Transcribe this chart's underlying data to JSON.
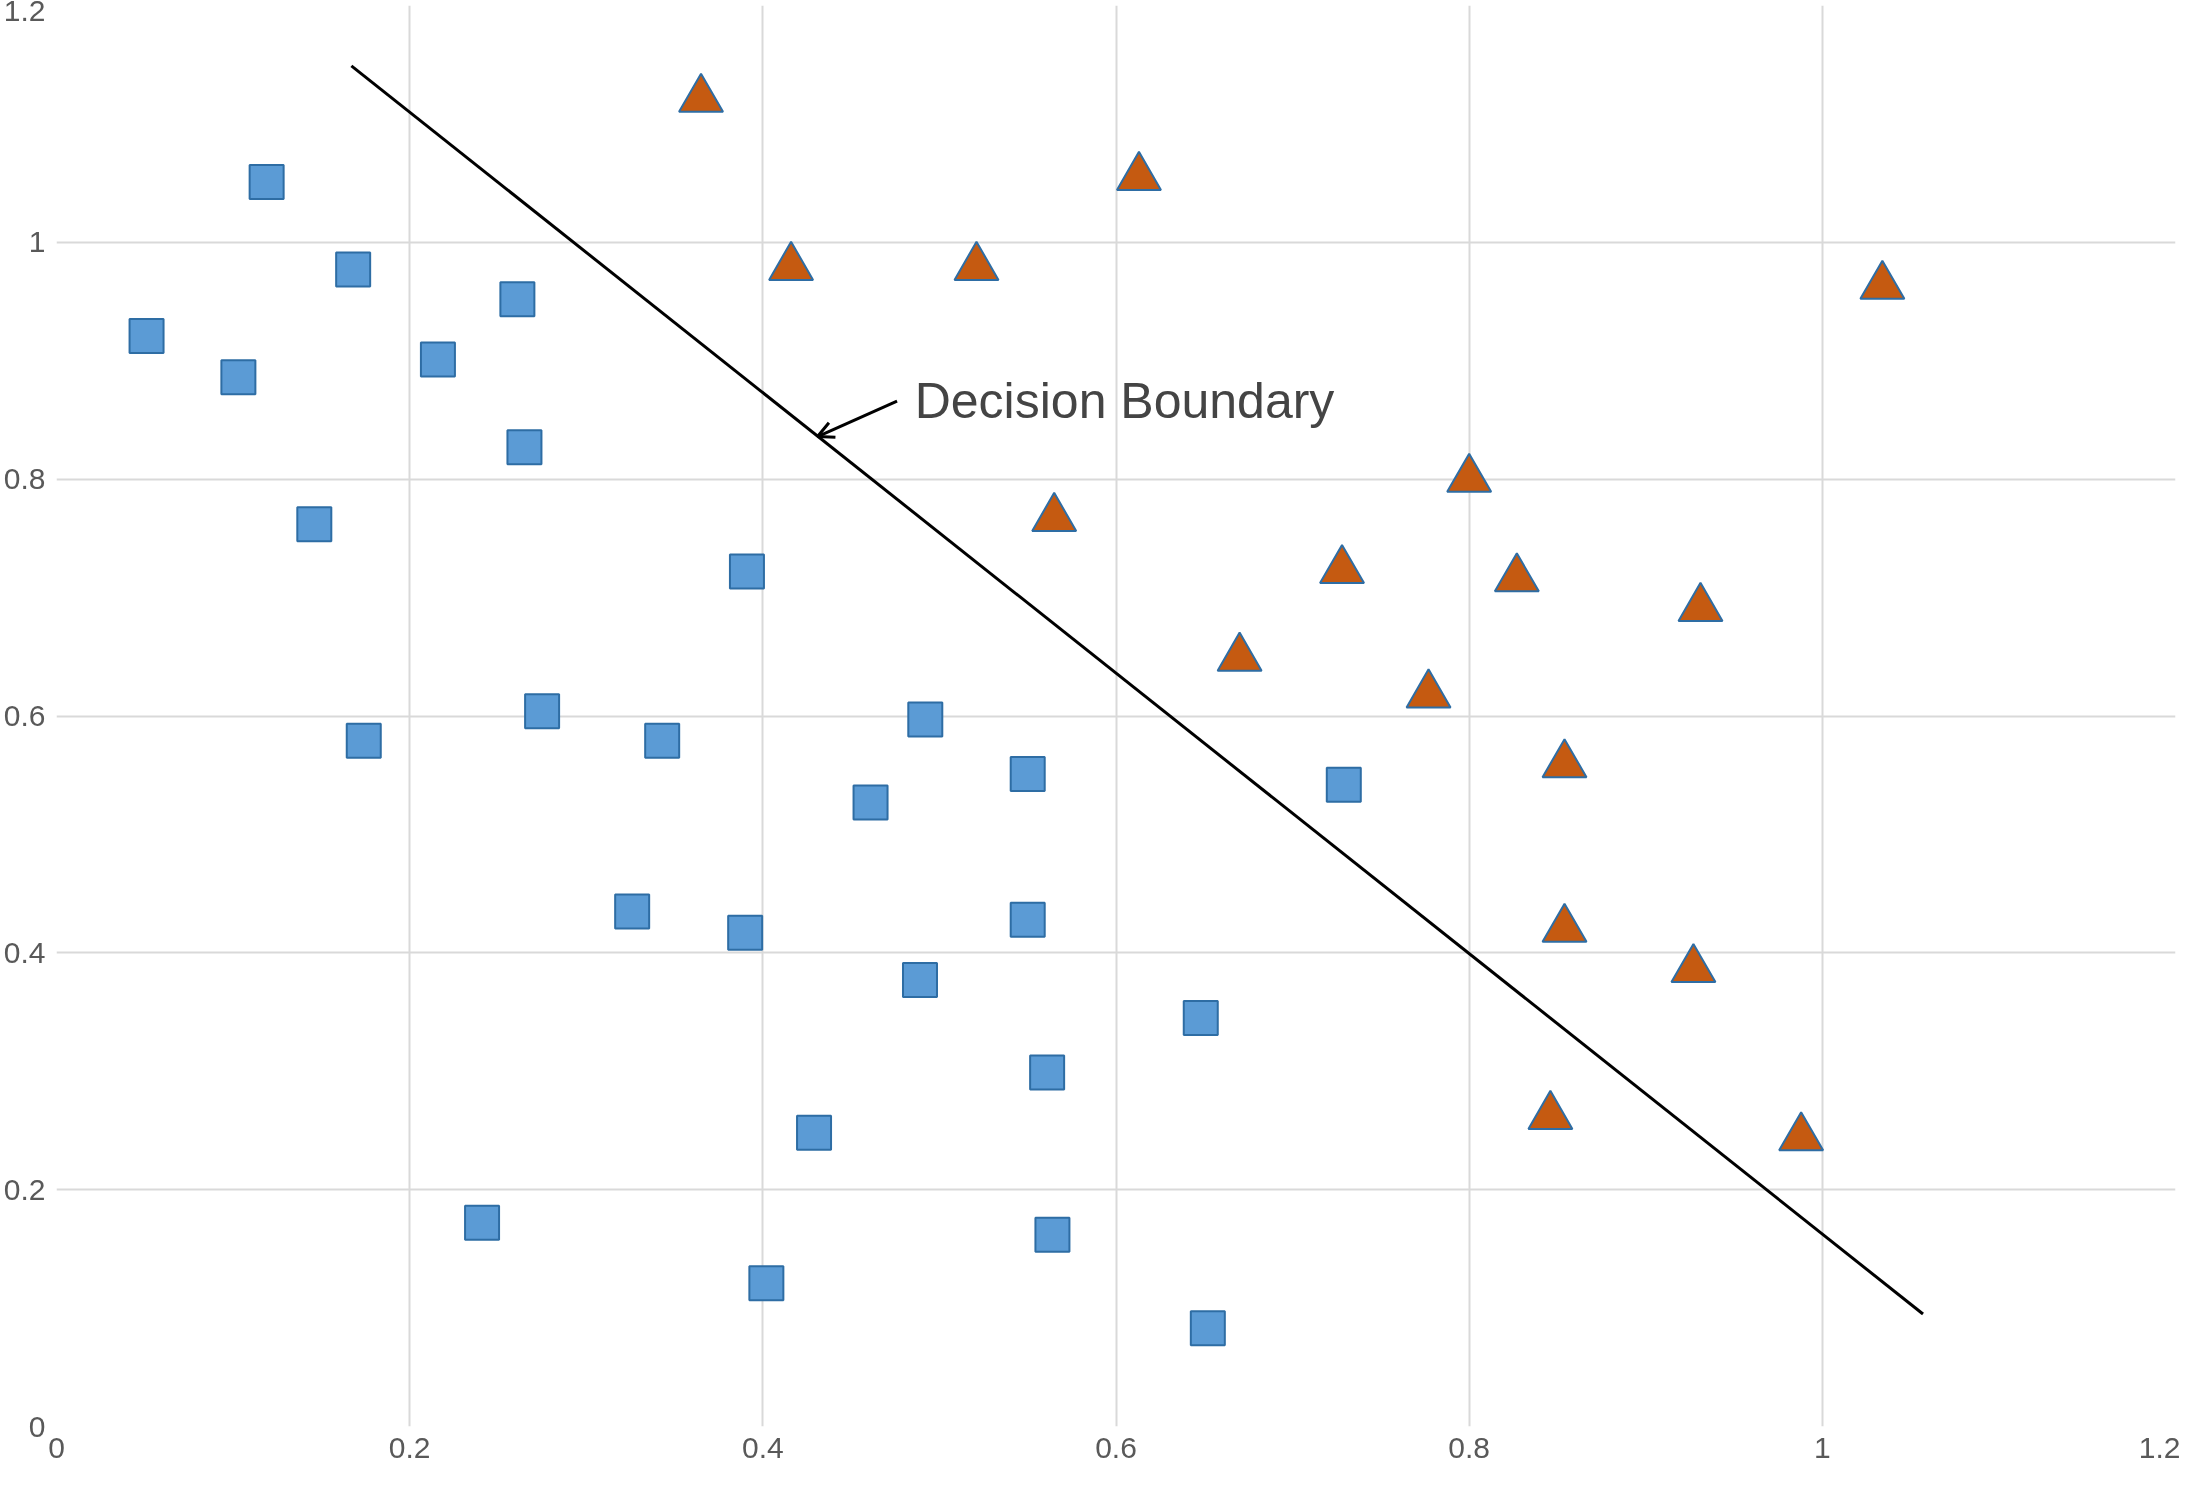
{
  "chart_data": {
    "type": "scatter",
    "xlim": [
      0,
      1.2
    ],
    "ylim": [
      0,
      1.2
    ],
    "xticks": [
      0,
      0.2,
      0.4,
      0.6,
      0.8,
      1,
      1.2
    ],
    "yticks": [
      0,
      0.2,
      0.4,
      0.6,
      0.8,
      1,
      1.2
    ],
    "grid": true,
    "series": [
      {
        "color": "#5b9bd5",
        "marker": "square",
        "x": [
          0.119,
          0.168,
          0.051,
          0.103,
          0.216,
          0.261,
          0.265,
          0.146,
          0.391,
          0.174,
          0.275,
          0.343,
          0.492,
          0.55,
          0.461,
          0.729,
          0.326,
          0.39,
          0.55,
          0.489,
          0.648,
          0.561,
          0.429,
          0.241,
          0.564,
          0.402,
          0.652
        ],
        "values": [
          1.051,
          0.977,
          0.921,
          0.886,
          0.901,
          0.952,
          0.827,
          0.762,
          0.722,
          0.579,
          0.604,
          0.579,
          0.597,
          0.551,
          0.527,
          0.542,
          0.435,
          0.417,
          0.428,
          0.377,
          0.345,
          0.299,
          0.248,
          0.172,
          0.162,
          0.121,
          0.083
        ]
      },
      {
        "color": "#c55a11",
        "marker": "triangle",
        "x": [
          0.365,
          0.613,
          0.416,
          0.521,
          1.034,
          0.8,
          0.565,
          0.728,
          0.827,
          0.931,
          0.67,
          0.777,
          0.854,
          0.854,
          0.927,
          0.846,
          0.988
        ],
        "values": [
          1.121,
          1.055,
          0.979,
          0.979,
          0.963,
          0.8,
          0.767,
          0.723,
          0.716,
          0.691,
          0.649,
          0.618,
          0.559,
          0.42,
          0.386,
          0.262,
          0.244
        ]
      },
      {
        "type": "line",
        "color": "#000000",
        "marker": "none",
        "x": [
          0.167,
          1.057
        ],
        "values": [
          1.149,
          0.095
        ]
      }
    ],
    "annotations": [
      {
        "text": "Decision Boundary",
        "x": 0.431,
        "y": 0.836
      }
    ]
  }
}
